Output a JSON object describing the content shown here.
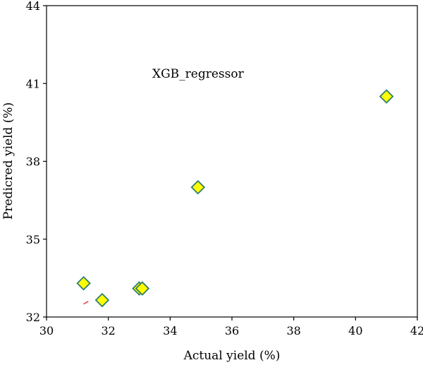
{
  "chart_data": {
    "type": "scatter",
    "title": "",
    "xlabel": "Actual yield (%)",
    "ylabel": "Predicred yield (%)",
    "xlim": [
      30,
      42
    ],
    "ylim": [
      32,
      44
    ],
    "xticks": [
      "30",
      "32",
      "34",
      "36",
      "38",
      "40",
      "42"
    ],
    "yticks": [
      "32",
      "35",
      "38",
      "41",
      "44"
    ],
    "grid": false,
    "annotation": "XGB_regressor",
    "marker": "diamond",
    "marker_fill": "#ffff00",
    "marker_edge": "#2e7d6e",
    "series": [
      {
        "points": [
          {
            "x": 31.2,
            "y": 33.3
          },
          {
            "x": 31.8,
            "y": 32.65
          },
          {
            "x": 33.0,
            "y": 33.1
          },
          {
            "x": 33.1,
            "y": 33.1
          },
          {
            "x": 34.9,
            "y": 37.0
          },
          {
            "x": 41.0,
            "y": 40.5
          }
        ]
      }
    ],
    "reference_line": {
      "color": "#e53935",
      "points": [
        {
          "x": 31.2,
          "y": 32.5
        },
        {
          "x": 31.35,
          "y": 32.6
        }
      ]
    }
  }
}
